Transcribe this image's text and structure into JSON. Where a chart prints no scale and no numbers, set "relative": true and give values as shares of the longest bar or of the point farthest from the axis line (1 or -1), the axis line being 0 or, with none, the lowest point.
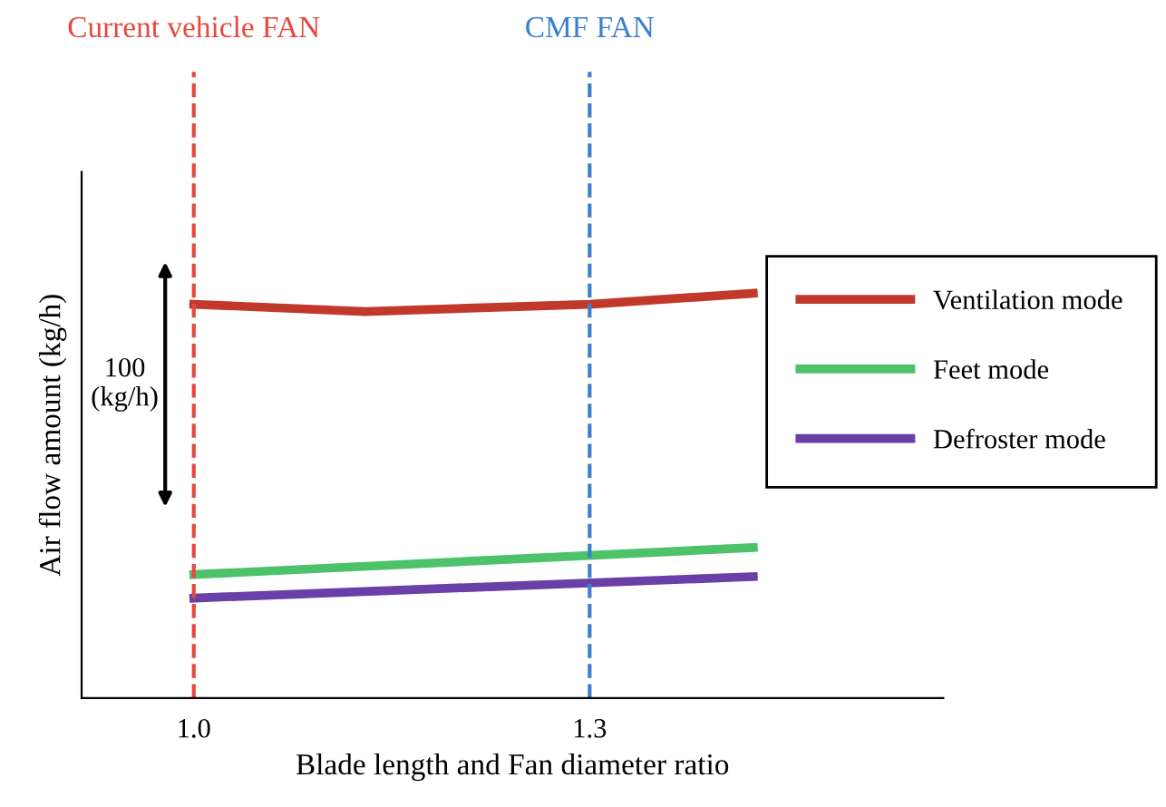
{
  "chart_data": {
    "type": "line",
    "relative": true,
    "xlabel": "Blade length and Fan diameter ratio",
    "ylabel": "Air flow amount (kg/h)",
    "xlim": [
      0.915,
      1.568
    ],
    "xticks": [
      {
        "value": 1.0,
        "label": "1.0"
      },
      {
        "value": 1.3,
        "label": "1.3"
      }
    ],
    "series": [
      {
        "name": "Ventilation mode",
        "color": "#c0392b",
        "x": [
          1.0,
          1.13,
          1.3,
          1.424
        ],
        "values": [
          0.973,
          0.955,
          0.973,
          1.0
        ]
      },
      {
        "name": "Feet mode",
        "color": "#4cc36a",
        "x": [
          1.0,
          1.424
        ],
        "values": [
          0.305,
          0.372
        ]
      },
      {
        "name": "Defroster mode",
        "color": "#6a3fa8",
        "x": [
          1.0,
          1.424
        ],
        "values": [
          0.247,
          0.3
        ]
      }
    ],
    "ref_lines": [
      {
        "axis": "x",
        "value": 1.0,
        "label": "Current vehicle FAN",
        "color": "#e8473c",
        "line_style": "dashed"
      },
      {
        "axis": "x",
        "value": 1.3,
        "label": "CMF FAN",
        "color": "#3a7fd0",
        "line_style": "dashed"
      }
    ],
    "annotations": [
      "100\n(kg/h)"
    ],
    "legend": "right",
    "grid": false,
    "marker": "none",
    "line_style": "solid"
  }
}
